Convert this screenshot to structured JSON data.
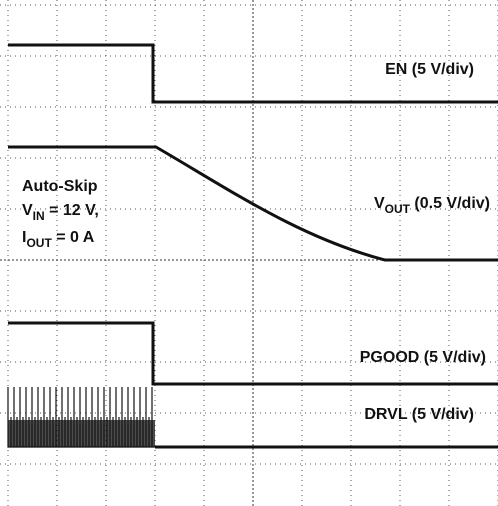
{
  "traces": [
    {
      "label": "EN (5 V/div)"
    },
    {
      "label_parts": [
        "V",
        "OUT",
        " (0.5 V/div)"
      ]
    },
    {
      "label": "PGOOD (5 V/div)"
    },
    {
      "label": "DRVL (5 V/div)"
    }
  ],
  "conditions": {
    "mode": "Auto-Skip",
    "vin_parts": [
      "V",
      "IN",
      " = 12 V,"
    ],
    "iout_parts": [
      "I",
      "OUT",
      " = 0 A"
    ]
  }
}
